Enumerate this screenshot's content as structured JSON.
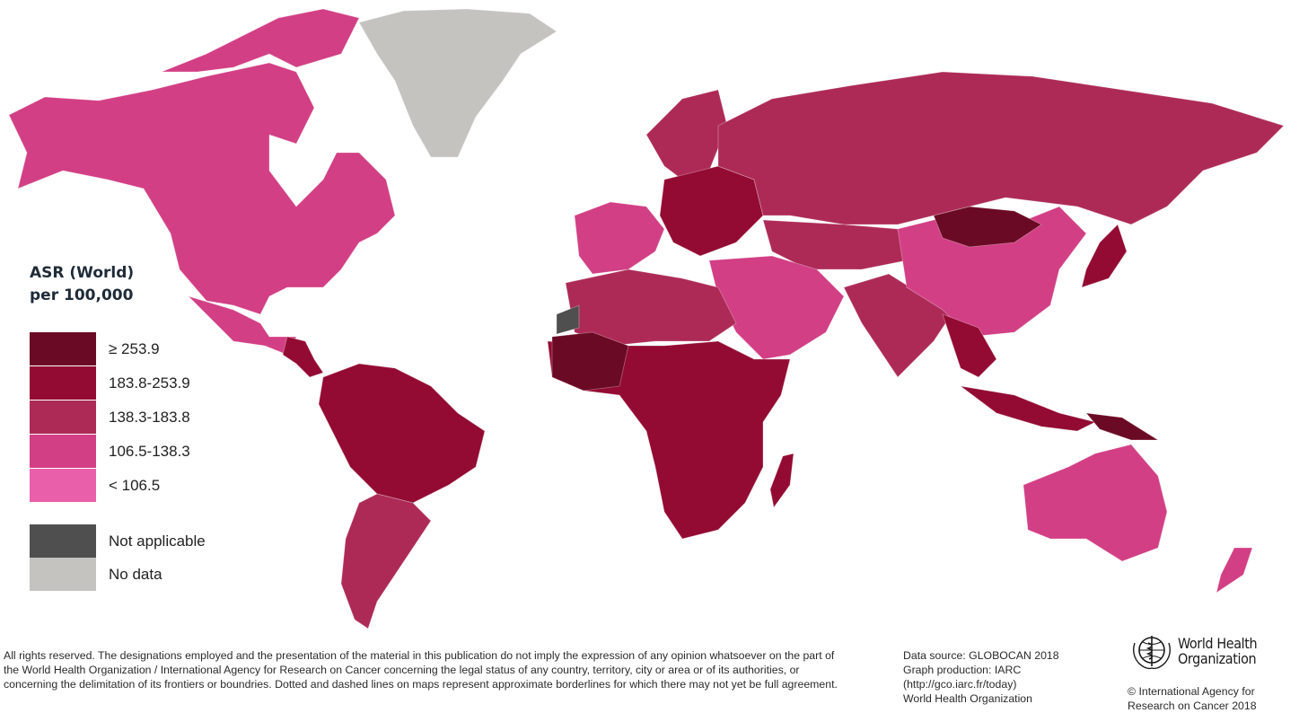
{
  "legend": {
    "title_line1": "ASR (World)",
    "title_line2": "per 100,000",
    "classes": [
      {
        "label": "≥ 253.9",
        "color": "#6b0a24"
      },
      {
        "label": "183.8-253.9",
        "color": "#930b33"
      },
      {
        "label": "138.3-183.8",
        "color": "#ad2a57"
      },
      {
        "label": "106.5-138.3",
        "color": "#d23f84"
      },
      {
        "label": "< 106.5",
        "color": "#ea5faa"
      },
      {
        "label": "Not applicable",
        "color": "#4f4f4f"
      },
      {
        "label": "No data",
        "color": "#c4c3bf"
      }
    ]
  },
  "map_regions": [
    {
      "region": "North America (USA/Canada)",
      "class": "106.5-138.3"
    },
    {
      "region": "Greenland",
      "class": "No data"
    },
    {
      "region": "Central America",
      "class": "183.8-253.9"
    },
    {
      "region": "South America (north)",
      "class": "183.8-253.9"
    },
    {
      "region": "South America (south)",
      "class": "138.3-183.8"
    },
    {
      "region": "Western Europe",
      "class": "106.5-138.3"
    },
    {
      "region": "Eastern Europe",
      "class": "183.8-253.9"
    },
    {
      "region": "Russia",
      "class": "138.3-183.8"
    },
    {
      "region": "North Africa",
      "class": "138.3-183.8"
    },
    {
      "region": "Sub-Saharan Africa",
      "class": "183.8-253.9"
    },
    {
      "region": "Middle East",
      "class": "106.5-138.3"
    },
    {
      "region": "India",
      "class": "138.3-183.8"
    },
    {
      "region": "China",
      "class": "106.5-138.3"
    },
    {
      "region": "Mongolia",
      "class": "≥ 253.9"
    },
    {
      "region": "Southeast Asia",
      "class": "183.8-253.9"
    },
    {
      "region": "Australia",
      "class": "106.5-138.3"
    },
    {
      "region": "Western Sahara",
      "class": "Not applicable"
    }
  ],
  "footer": {
    "disclaimer": "All rights reserved. The designations employed and the presentation of the material in this publication do not imply the expression of any opinion whatsoever on the part of the World Health Organization / International Agency for Research on Cancer concerning the legal status of any country, territory, city or area or of its authorities, or concerning the delimitation of its frontiers or boundries. Dotted and dashed lines on maps represent approximate borderlines for which there may not yet be full agreement.",
    "source_line1": "Data source: GLOBOCAN 2018",
    "source_line2": "Graph production: IARC",
    "source_line3": "(http://gco.iarc.fr/today)",
    "source_line4": "World Health Organization",
    "who_name_line1": "World Health",
    "who_name_line2": "Organization",
    "copyright_line1": "© International Agency for",
    "copyright_line2": "Research on Cancer 2018"
  }
}
